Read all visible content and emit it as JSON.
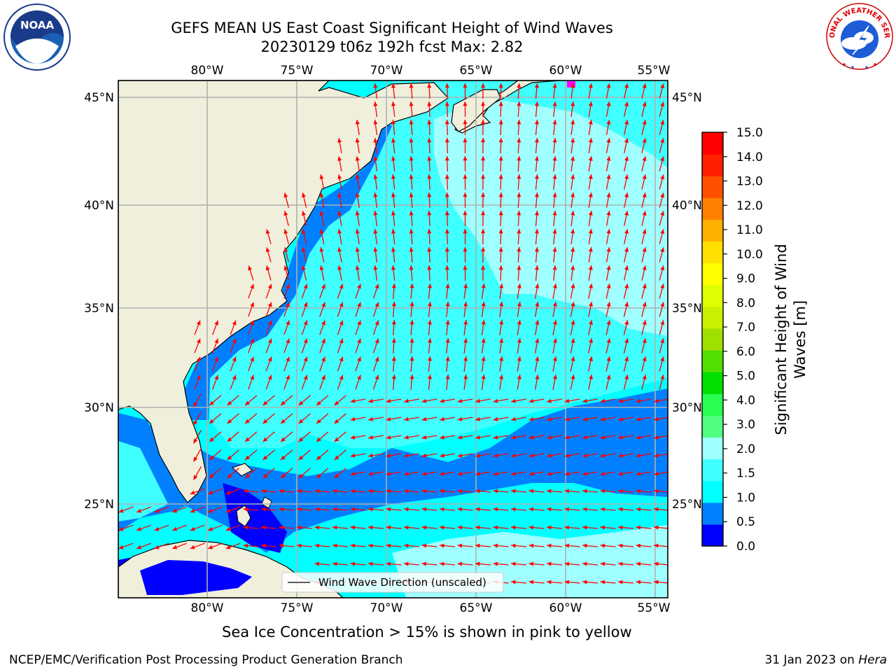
{
  "title_line1": "GEFS MEAN US East Coast Significant Height of Wind Waves",
  "title_line2": "20230129 t06z 192h fcst   Max: 2.82",
  "lon_labels": [
    "80°W",
    "75°W",
    "70°W",
    "65°W",
    "60°W",
    "55°W"
  ],
  "lat_labels": [
    "45°N",
    "40°N",
    "35°N",
    "30°N",
    "25°N"
  ],
  "colorbar": {
    "label_line1": "Significant Height of Wind",
    "label_line2": "Waves [m]",
    "ticks": [
      "15.0",
      "14.0",
      "13.0",
      "12.0",
      "11.0",
      "10.0",
      "9.0",
      "8.0",
      "7.0",
      "6.0",
      "5.0",
      "4.0",
      "3.0",
      "2.0",
      "1.5",
      "1.0",
      "0.5",
      "0.0"
    ],
    "colors_bottom_to_top": [
      "#0000ff",
      "#0080ff",
      "#00ffff",
      "#40ffff",
      "#a0ffff",
      "#50ff80",
      "#28ff50",
      "#00e000",
      "#50e000",
      "#a0e000",
      "#c8f000",
      "#e0ff00",
      "#ffff00",
      "#ffe000",
      "#ffb000",
      "#ff8000",
      "#ff5000",
      "#ff2000",
      "#ff0000"
    ]
  },
  "legend": {
    "label": "Wind Wave Direction (unscaled)"
  },
  "footnote": "Sea Ice Concentration > 15% is shown in pink to yellow",
  "credit_left": "NCEP/EMC/Verification Post Processing Product Generation Branch",
  "credit_right_date": "31 Jan 2023 on",
  "credit_right_host": "Hera",
  "colors": {
    "land": "#efefdc",
    "arrow": "#ff0000",
    "grid": "#b0b0b0"
  },
  "logos": {
    "left": "NOAA",
    "right": "NATIONAL WEATHER SERVICE"
  }
}
